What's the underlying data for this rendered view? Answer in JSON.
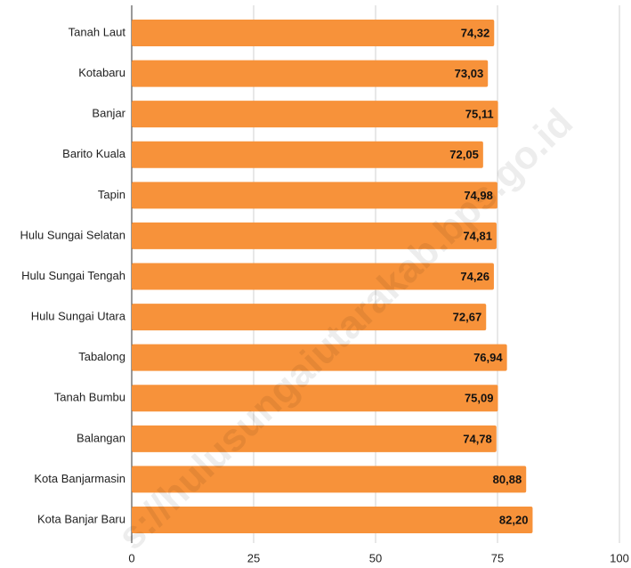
{
  "chart_data": {
    "type": "bar",
    "orientation": "horizontal",
    "categories": [
      "Tanah Laut",
      "Kotabaru",
      "Banjar",
      "Barito Kuala",
      "Tapin",
      "Hulu Sungai Selatan",
      "Hulu Sungai Tengah",
      "Hulu Sungai Utara",
      "Tabalong",
      "Tanah Bumbu",
      "Balangan",
      "Kota Banjarmasin",
      "Kota Banjar Baru"
    ],
    "values": [
      74.32,
      73.03,
      75.11,
      72.05,
      74.98,
      74.81,
      74.26,
      72.67,
      76.94,
      75.09,
      74.78,
      80.88,
      82.2
    ],
    "value_labels": [
      "74,32",
      "73,03",
      "75,11",
      "72,05",
      "74,98",
      "74,81",
      "74,26",
      "72,67",
      "76,94",
      "75,09",
      "74,78",
      "80,88",
      "82,20"
    ],
    "color": "#f7923a",
    "xlim": [
      0,
      100
    ],
    "xticks": [
      0,
      25,
      50,
      75,
      100
    ],
    "grid": true,
    "watermark": "s://hulusungaiutarakab.bps.go.id"
  }
}
